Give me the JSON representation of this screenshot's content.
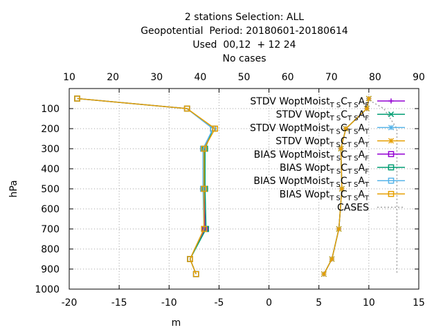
{
  "title": {
    "lines": [
      "2 stations Selection: ALL",
      "Geopotential  Period: 20180601-20180614",
      "Used  00,12  + 12 24",
      "No cases"
    ]
  },
  "colors": {
    "purple": "#9400d3",
    "green": "#009e73",
    "skyblue": "#56b4e9",
    "orange": "#e69f00",
    "cases": "#a0a0a0",
    "grid": "#a0a0a0"
  },
  "chart_data": {
    "type": "line",
    "xlabel": "m",
    "ylabel": "hPa",
    "xlim": [
      -20,
      15
    ],
    "x_ticks": [
      "-20",
      "-15",
      "-10",
      "-5",
      "0",
      "5",
      "10",
      "15"
    ],
    "ylim": [
      1000,
      0
    ],
    "y_ticks": [
      "100",
      "200",
      "300",
      "400",
      "500",
      "600",
      "700",
      "800",
      "900",
      "1000"
    ],
    "x2lim": [
      10,
      90
    ],
    "x2_ticks": [
      "10",
      "20",
      "30",
      "40",
      "50",
      "60",
      "70",
      "80",
      "90"
    ],
    "grid": true,
    "legend_position": "top-right",
    "levels": [
      50,
      100,
      200,
      300,
      500,
      700,
      850,
      925
    ],
    "series": [
      {
        "name": "STDV WoptMoist",
        "sub1": "T S",
        "mid": "C",
        "sub2": "T S",
        "tail": "A",
        "sub3": "F",
        "color_key": "purple",
        "marker": "plus",
        "values": [
          10.0,
          9.8,
          7.7,
          7.2,
          7.3,
          7.0,
          6.3,
          5.5
        ]
      },
      {
        "name": "STDV Wopt",
        "sub1": "T S",
        "mid": "C",
        "sub2": "T S",
        "tail": "A",
        "sub3": "F",
        "color_key": "green",
        "marker": "cross",
        "values": [
          10.0,
          9.8,
          7.7,
          7.2,
          7.3,
          7.0,
          6.3,
          5.5
        ]
      },
      {
        "name": "STDV WoptMoist",
        "sub1": "T S",
        "mid": "C",
        "sub2": "T S",
        "tail": "A",
        "sub3": "T",
        "color_key": "skyblue",
        "marker": "star",
        "values": [
          10.0,
          9.8,
          7.7,
          7.2,
          7.3,
          7.0,
          6.3,
          5.5
        ]
      },
      {
        "name": "STDV Wopt",
        "sub1": "T S",
        "mid": "C",
        "sub2": "T S",
        "tail": "A",
        "sub3": "T",
        "color_key": "orange",
        "marker": "star",
        "values": [
          10.0,
          9.8,
          7.7,
          7.2,
          7.3,
          7.0,
          6.3,
          5.5
        ]
      },
      {
        "name": "BIAS WoptMoist",
        "sub1": "T S",
        "mid": "C",
        "sub2": "T S",
        "tail": "A",
        "sub3": "F",
        "color_key": "purple",
        "marker": "square",
        "values": [
          -19.2,
          -8.2,
          -5.6,
          -6.5,
          -6.5,
          -6.4,
          -7.9,
          -7.3
        ]
      },
      {
        "name": "BIAS Wopt",
        "sub1": "T S",
        "mid": "C",
        "sub2": "T S",
        "tail": "A",
        "sub3": "F",
        "color_key": "green",
        "marker": "square",
        "values": [
          -19.2,
          -8.2,
          -5.6,
          -6.4,
          -6.4,
          -6.3,
          -7.9,
          -7.3
        ]
      },
      {
        "name": "BIAS WoptMoist",
        "sub1": "T S",
        "mid": "C",
        "sub2": "T S",
        "tail": "A",
        "sub3": "T",
        "color_key": "skyblue",
        "marker": "square",
        "values": [
          -19.2,
          -8.2,
          -5.6,
          -6.6,
          -6.6,
          -6.5,
          -7.9,
          -7.3
        ]
      },
      {
        "name": "BIAS Wopt",
        "sub1": "T S",
        "mid": "C",
        "sub2": "T S",
        "tail": "A",
        "sub3": "T",
        "color_key": "orange",
        "marker": "square",
        "values": [
          -19.2,
          -8.2,
          -5.4,
          -6.5,
          -6.5,
          -6.5,
          -7.9,
          -7.3
        ]
      }
    ],
    "cases": {
      "name": "CASES",
      "color_key": "cases",
      "x2_values": [
        78,
        82,
        85,
        85,
        85,
        85,
        85
      ],
      "levels": [
        50,
        100,
        200,
        300,
        500,
        700,
        925
      ]
    }
  }
}
